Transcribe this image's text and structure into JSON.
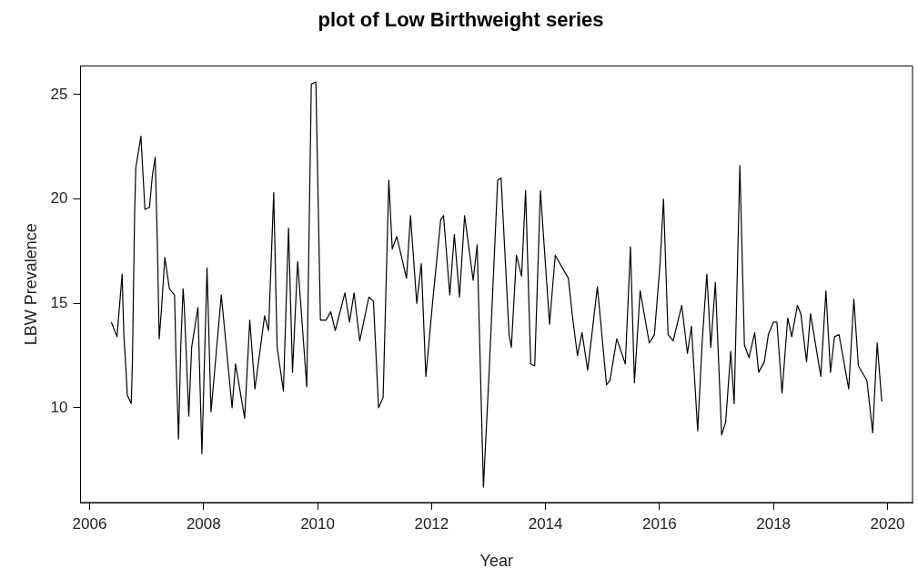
{
  "chart_data": {
    "type": "line",
    "title": "plot of Low Birthweight series",
    "xlabel": "Year",
    "ylabel": "LBW Prevalence",
    "x": [
      2006.38,
      2006.48,
      2006.57,
      2006.6,
      2006.64,
      2006.66,
      2006.73,
      2006.75,
      2006.79,
      2006.81,
      2006.9,
      2006.97,
      2007.05,
      2007.1,
      2007.15,
      2007.19,
      2007.22,
      2007.26,
      2007.32,
      2007.4,
      2007.49,
      2007.52,
      2007.56,
      2007.6,
      2007.64,
      2007.66,
      2007.74,
      2007.79,
      2007.9,
      2007.97,
      2008.06,
      2008.13,
      2008.31,
      2008.5,
      2008.56,
      2008.72,
      2008.81,
      2008.9,
      2009.07,
      2009.14,
      2009.23,
      2009.29,
      2009.4,
      2009.49,
      2009.56,
      2009.65,
      2009.81,
      2009.89,
      2009.97,
      2010.05,
      2010.15,
      2010.23,
      2010.31,
      2010.48,
      2010.56,
      2010.64,
      2010.74,
      2010.9,
      2010.98,
      2011.07,
      2011.15,
      2011.25,
      2011.31,
      2011.39,
      2011.56,
      2011.63,
      2011.74,
      2011.82,
      2011.9,
      2012.02,
      2012.16,
      2012.21,
      2012.32,
      2012.4,
      2012.49,
      2012.58,
      2012.73,
      2012.8,
      2012.91,
      2013.01,
      2013.16,
      2013.22,
      2013.36,
      2013.4,
      2013.49,
      2013.58,
      2013.65,
      2013.74,
      2013.81,
      2013.91,
      2014.02,
      2014.07,
      2014.17,
      2014.4,
      2014.48,
      2014.56,
      2014.64,
      2014.74,
      2014.91,
      2015.07,
      2015.13,
      2015.25,
      2015.4,
      2015.49,
      2015.56,
      2015.66,
      2015.82,
      2015.91,
      2016.01,
      2016.07,
      2016.15,
      2016.24,
      2016.39,
      2016.49,
      2016.56,
      2016.67,
      2016.75,
      2016.83,
      2016.9,
      2016.98,
      2017.09,
      2017.16,
      2017.25,
      2017.31,
      2017.41,
      2017.49,
      2017.57,
      2017.67,
      2017.74,
      2017.84,
      2017.91,
      2018.0,
      2018.06,
      2018.15,
      2018.25,
      2018.32,
      2018.42,
      2018.48,
      2018.58,
      2018.65,
      2018.83,
      2018.92,
      2019.0,
      2019.07,
      2019.15,
      2019.32,
      2019.41,
      2019.49,
      2019.64,
      2019.74,
      2019.82,
      2019.9
    ],
    "series": [
      {
        "color": "#000000",
        "values": [
          14.1,
          13.4,
          16.4,
          13.5,
          11.7,
          10.6,
          10.2,
          12.1,
          19.4,
          21.5,
          23.0,
          19.5,
          19.6,
          21.1,
          22.0,
          17.7,
          13.3,
          14.7,
          17.2,
          15.7,
          15.4,
          11.9,
          8.5,
          13.0,
          15.7,
          14.9,
          9.6,
          12.9,
          14.8,
          7.8,
          16.7,
          9.8,
          15.4,
          10.0,
          12.1,
          9.5,
          14.2,
          10.9,
          14.4,
          13.7,
          20.3,
          12.9,
          10.8,
          18.6,
          11.7,
          17.0,
          11.0,
          25.5,
          25.6,
          14.2,
          14.2,
          14.6,
          13.7,
          15.5,
          14.1,
          15.5,
          13.2,
          15.3,
          15.1,
          10.0,
          10.5,
          20.9,
          17.6,
          18.2,
          16.2,
          19.2,
          15.0,
          16.9,
          11.5,
          15.1,
          19.0,
          19.2,
          15.4,
          18.3,
          15.3,
          19.2,
          16.1,
          17.8,
          6.2,
          11.7,
          20.9,
          21.0,
          13.5,
          12.9,
          17.3,
          16.3,
          20.4,
          12.1,
          12.0,
          20.4,
          16.0,
          14.0,
          17.3,
          16.2,
          14.2,
          12.5,
          13.6,
          11.8,
          15.8,
          11.1,
          11.3,
          13.3,
          12.1,
          17.7,
          11.2,
          15.6,
          13.1,
          13.5,
          16.9,
          20.0,
          13.5,
          13.2,
          14.9,
          12.6,
          13.9,
          8.9,
          13.2,
          16.4,
          12.9,
          16.0,
          8.7,
          9.3,
          12.7,
          10.2,
          21.6,
          13.0,
          12.4,
          13.6,
          11.7,
          12.2,
          13.5,
          14.1,
          14.1,
          10.7,
          14.3,
          13.4,
          14.9,
          14.5,
          12.2,
          14.5,
          11.5,
          15.6,
          11.7,
          13.4,
          13.5,
          10.9,
          15.2,
          12.0,
          11.3,
          8.8,
          13.1,
          10.3
        ]
      }
    ],
    "xlim": [
      2005.84,
      2020.44
    ],
    "ylim": [
      5.46,
      26.37
    ],
    "xticks": [
      2006,
      2008,
      2010,
      2012,
      2014,
      2016,
      2018,
      2020
    ],
    "yticks": [
      10,
      15,
      20,
      25
    ],
    "grid": false,
    "legend": false,
    "marker": "none",
    "line_style": "solid"
  }
}
